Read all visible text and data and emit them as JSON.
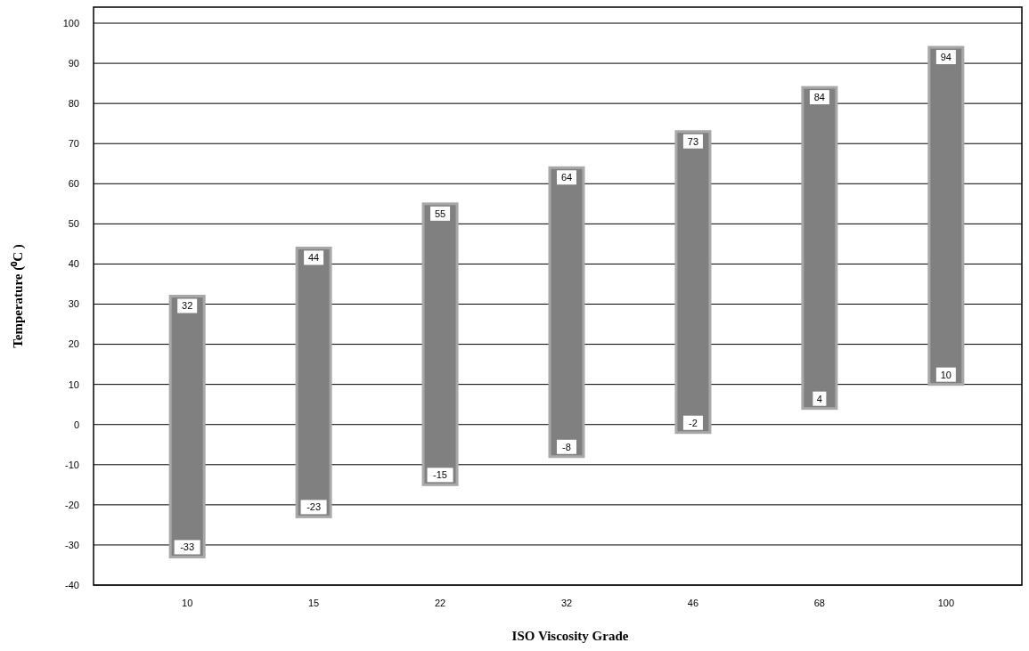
{
  "chart_data": {
    "type": "bar",
    "xlabel": "ISO Viscosity Grade",
    "ylabel": "Temperature (⁰C )",
    "categories": [
      "10",
      "15",
      "22",
      "32",
      "46",
      "68",
      "100"
    ],
    "base": [
      -33,
      -23,
      -15,
      -8,
      -2,
      4,
      10
    ],
    "values": [
      65,
      67,
      70,
      72,
      75,
      80,
      84
    ],
    "color": "#808080",
    "ylim": [
      -40,
      104
    ],
    "yticks": [
      -40,
      -30,
      -20,
      -10,
      0,
      10,
      20,
      30,
      40,
      50,
      60,
      70,
      80,
      90,
      100
    ],
    "grid": "y",
    "annotations": [
      {
        "text": "32",
        "x": "10",
        "y": 32
      },
      {
        "text": "-33",
        "x": "10",
        "y": -33
      },
      {
        "text": "44",
        "x": "15",
        "y": 44
      },
      {
        "text": "-23",
        "x": "15",
        "y": -23
      },
      {
        "text": "55",
        "x": "22",
        "y": 55
      },
      {
        "text": "-15",
        "x": "22",
        "y": -15
      },
      {
        "text": "64",
        "x": "32",
        "y": 64
      },
      {
        "text": "-8",
        "x": "32",
        "y": -8
      },
      {
        "text": "73",
        "x": "46",
        "y": 73
      },
      {
        "text": "-2",
        "x": "46",
        "y": -2
      },
      {
        "text": "84",
        "x": "68",
        "y": 84
      },
      {
        "text": "4",
        "x": "68",
        "y": 4
      },
      {
        "text": "94",
        "x": "100",
        "y": 94
      },
      {
        "text": "10",
        "x": "100",
        "y": 10
      }
    ]
  }
}
